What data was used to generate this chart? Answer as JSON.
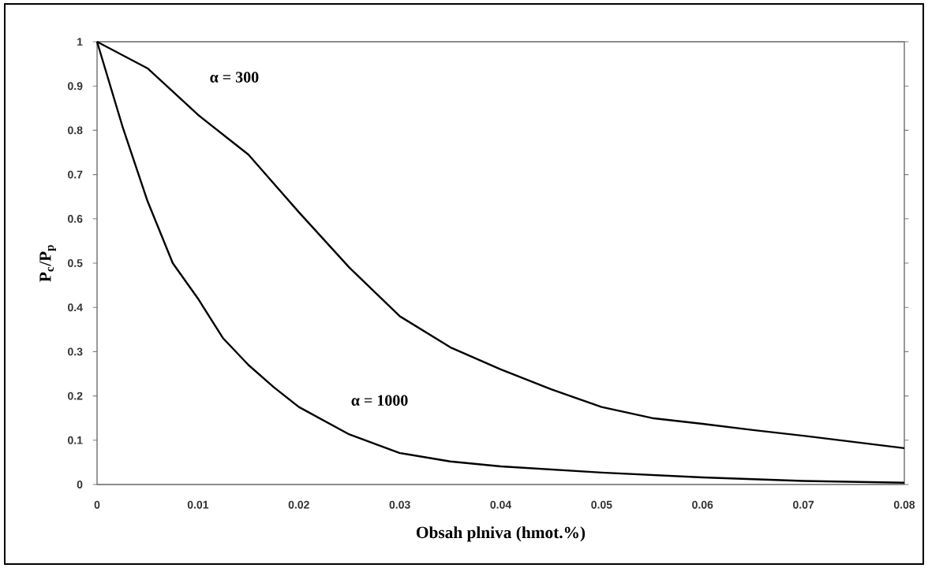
{
  "chart_data": {
    "type": "line",
    "xlabel": "Obsah plniva (hmot.%)",
    "ylabel": "P$_{c}$/P$_{p}$",
    "xlim": [
      0,
      0.08
    ],
    "ylim": [
      0,
      1
    ],
    "xticks": [
      0,
      0.01,
      0.02,
      0.03,
      0.04,
      0.05,
      0.06,
      0.07,
      0.08
    ],
    "yticks": [
      0,
      0.1,
      0.2,
      0.3,
      0.4,
      0.5,
      0.6,
      0.7,
      0.8,
      0.9,
      1
    ],
    "marker": "none",
    "line_style": "solid",
    "series": [
      {
        "name": "α = 300",
        "color": "#000000",
        "x": [
          0,
          0.005,
          0.01,
          0.015,
          0.02,
          0.025,
          0.03,
          0.035,
          0.04,
          0.045,
          0.05,
          0.055,
          0.06,
          0.065,
          0.07,
          0.075,
          0.08
        ],
        "values": [
          1,
          0.94,
          0.835,
          0.745,
          0.615,
          0.49,
          0.38,
          0.31,
          0.26,
          0.215,
          0.175,
          0.15,
          0.137,
          0.123,
          0.11,
          0.096,
          0.082
        ]
      },
      {
        "name": "α = 1000",
        "color": "#000000",
        "x": [
          0,
          0.0025,
          0.005,
          0.0075,
          0.01,
          0.0125,
          0.015,
          0.0175,
          0.02,
          0.025,
          0.03,
          0.035,
          0.04,
          0.05,
          0.06,
          0.07,
          0.08
        ],
        "values": [
          1,
          0.81,
          0.64,
          0.5,
          0.42,
          0.33,
          0.27,
          0.22,
          0.175,
          0.113,
          0.071,
          0.052,
          0.041,
          0.027,
          0.016,
          0.008,
          0.004
        ]
      }
    ]
  }
}
